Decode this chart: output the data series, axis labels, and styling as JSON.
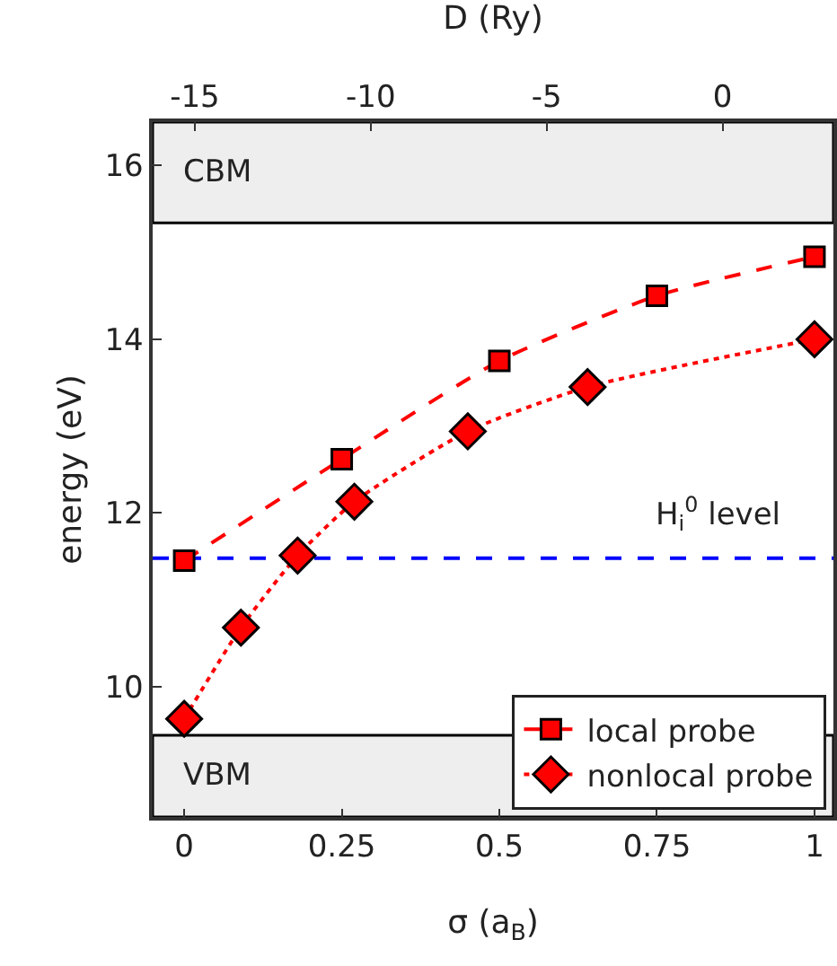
{
  "chart_data": {
    "type": "line",
    "xlabel": "σ (a$_{B}$)",
    "ylabel": "energy (eV)",
    "x2label": "D (Ry)",
    "xlim": [
      -0.05,
      1.03
    ],
    "xticks": [
      0,
      0.25,
      0.5,
      0.75,
      1
    ],
    "x2lim": [
      -16.2,
      3.15
    ],
    "x2ticks": [
      -15,
      -10,
      -5,
      0
    ],
    "ylim": [
      8.5,
      16.5
    ],
    "yticks": [
      10,
      12,
      14,
      16
    ],
    "series": [
      {
        "name": "local probe",
        "color": "#ff0000",
        "marker": "square",
        "line_style": "dashed",
        "x": [
          0,
          0.25,
          0.5,
          0.75,
          1
        ],
        "values": [
          11.45,
          12.62,
          13.75,
          14.5,
          14.95
        ]
      },
      {
        "name": "nonlocal probe",
        "color": "#ff0000",
        "marker": "diamond",
        "line_style": "dotted",
        "x": [
          0,
          0.09,
          0.18,
          0.27,
          0.45,
          0.64,
          1
        ],
        "values": [
          9.63,
          10.68,
          11.51,
          12.13,
          12.94,
          13.45,
          14.0
        ]
      }
    ],
    "bands": [
      {
        "axis": "y",
        "from": 15.34,
        "to": 16.5,
        "label": "CBM",
        "color": "#eeeeee"
      },
      {
        "axis": "y",
        "from": 8.5,
        "to": 9.44,
        "label": "VBM",
        "color": "#eeeeee"
      }
    ],
    "ref_lines": [
      {
        "axis": "y",
        "value": 11.48,
        "label": "H$_{i}$$^{0}$ level",
        "color": "#0000ff",
        "line_style": "dashed"
      }
    ],
    "grid": false,
    "legend": "bottom right"
  }
}
